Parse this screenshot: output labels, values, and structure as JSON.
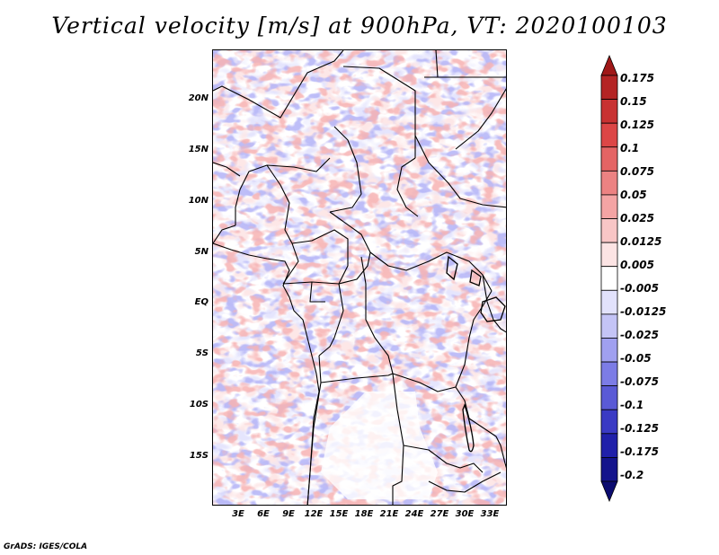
{
  "title": "Vertical velocity [m/s] at 900hPa, VT: 2020100103",
  "footer": "GrADS: IGES/COLA",
  "map": {
    "lat_labels": [
      "20N",
      "15N",
      "10N",
      "5N",
      "EQ",
      "5S",
      "10S",
      "15S"
    ],
    "lon_labels": [
      "3E",
      "6E",
      "9E",
      "12E",
      "15E",
      "18E",
      "21E",
      "24E",
      "27E",
      "30E",
      "33E"
    ]
  },
  "colorbar": {
    "labels": [
      "0.175",
      "0.15",
      "0.125",
      "0.1",
      "0.075",
      "0.05",
      "0.025",
      "0.0125",
      "0.005",
      "-0.005",
      "-0.0125",
      "-0.025",
      "-0.05",
      "-0.075",
      "-0.1",
      "-0.125",
      "-0.175",
      "-0.2"
    ],
    "colors": [
      "#a01818",
      "#b42424",
      "#c83232",
      "#dc4646",
      "#e46464",
      "#ec8282",
      "#f4a4a4",
      "#f8c6c6",
      "#fce4e4",
      "#ffffff",
      "#e2e2fc",
      "#c4c4f6",
      "#a0a0f0",
      "#7c7ce6",
      "#5a5ad6",
      "#3a3ac4",
      "#2020aa",
      "#14148c",
      "#0c0c70"
    ]
  }
}
